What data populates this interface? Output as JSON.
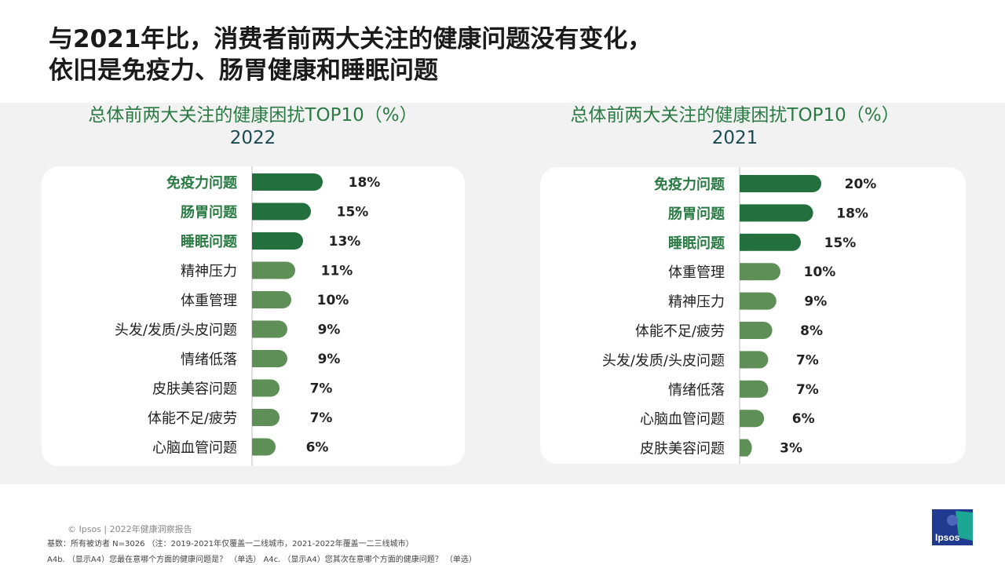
{
  "headline": {
    "line1": "与2021年比，消费者前两大关注的健康问题没有变化，",
    "line2": "依旧是免疫力、肠胃健康和睡眠问题"
  },
  "colors": {
    "highlight_bar": "#23703e",
    "normal_bar": "#5e8f56",
    "highlight_label": "#2a7a43",
    "year": "#1b4a52"
  },
  "chart_data": [
    {
      "type": "bar",
      "orientation": "horizontal",
      "title": "总体前两大关注的健康困扰TOP10（%）",
      "subtitle": "2022",
      "categories": [
        "免疫力问题",
        "肠胃问题",
        "睡眠问题",
        "精神压力",
        "体重管理",
        "头发/发质/头皮问题",
        "情绪低落",
        "皮肤美容问题",
        "体能不足/疲劳",
        "心脑血管问题"
      ],
      "values": [
        18,
        15,
        13,
        11,
        10,
        9,
        9,
        7,
        7,
        6
      ],
      "value_labels": [
        "18%",
        "15%",
        "13%",
        "11%",
        "10%",
        "9%",
        "9%",
        "7%",
        "7%",
        "6%"
      ],
      "highlighted": [
        true,
        true,
        true,
        false,
        false,
        false,
        false,
        false,
        false,
        false
      ]
    },
    {
      "type": "bar",
      "orientation": "horizontal",
      "title": "总体前两大关注的健康困扰TOP10（%）",
      "subtitle": "2021",
      "categories": [
        "免疫力问题",
        "肠胃问题",
        "睡眠问题",
        "体重管理",
        "精神压力",
        "体能不足/疲劳",
        "头发/发质/头皮问题",
        "情绪低落",
        "心脑血管问题",
        "皮肤美容问题"
      ],
      "values": [
        20,
        18,
        15,
        10,
        9,
        8,
        7,
        7,
        6,
        3
      ],
      "value_labels": [
        "20%",
        "18%",
        "15%",
        "10%",
        "9%",
        "8%",
        "7%",
        "7%",
        "6%",
        "3%"
      ],
      "highlighted": [
        true,
        true,
        true,
        false,
        false,
        false,
        false,
        false,
        false,
        false
      ]
    }
  ],
  "footer": {
    "copyright": "© Ipsos | 2022年健康洞察报告",
    "base": "基数：所有被访者  N=3026  （注：2019-2021年仅覆盖一二线城市，2021-2022年覆盖一二三线城市）",
    "question": "A4b. （显示A4）您最在意哪个方面的健康问题是？  （单选）  A4c. （显示A4）您其次在意哪个方面的健康问题？  （单选）"
  },
  "logo": {
    "text": "Ipsos"
  }
}
